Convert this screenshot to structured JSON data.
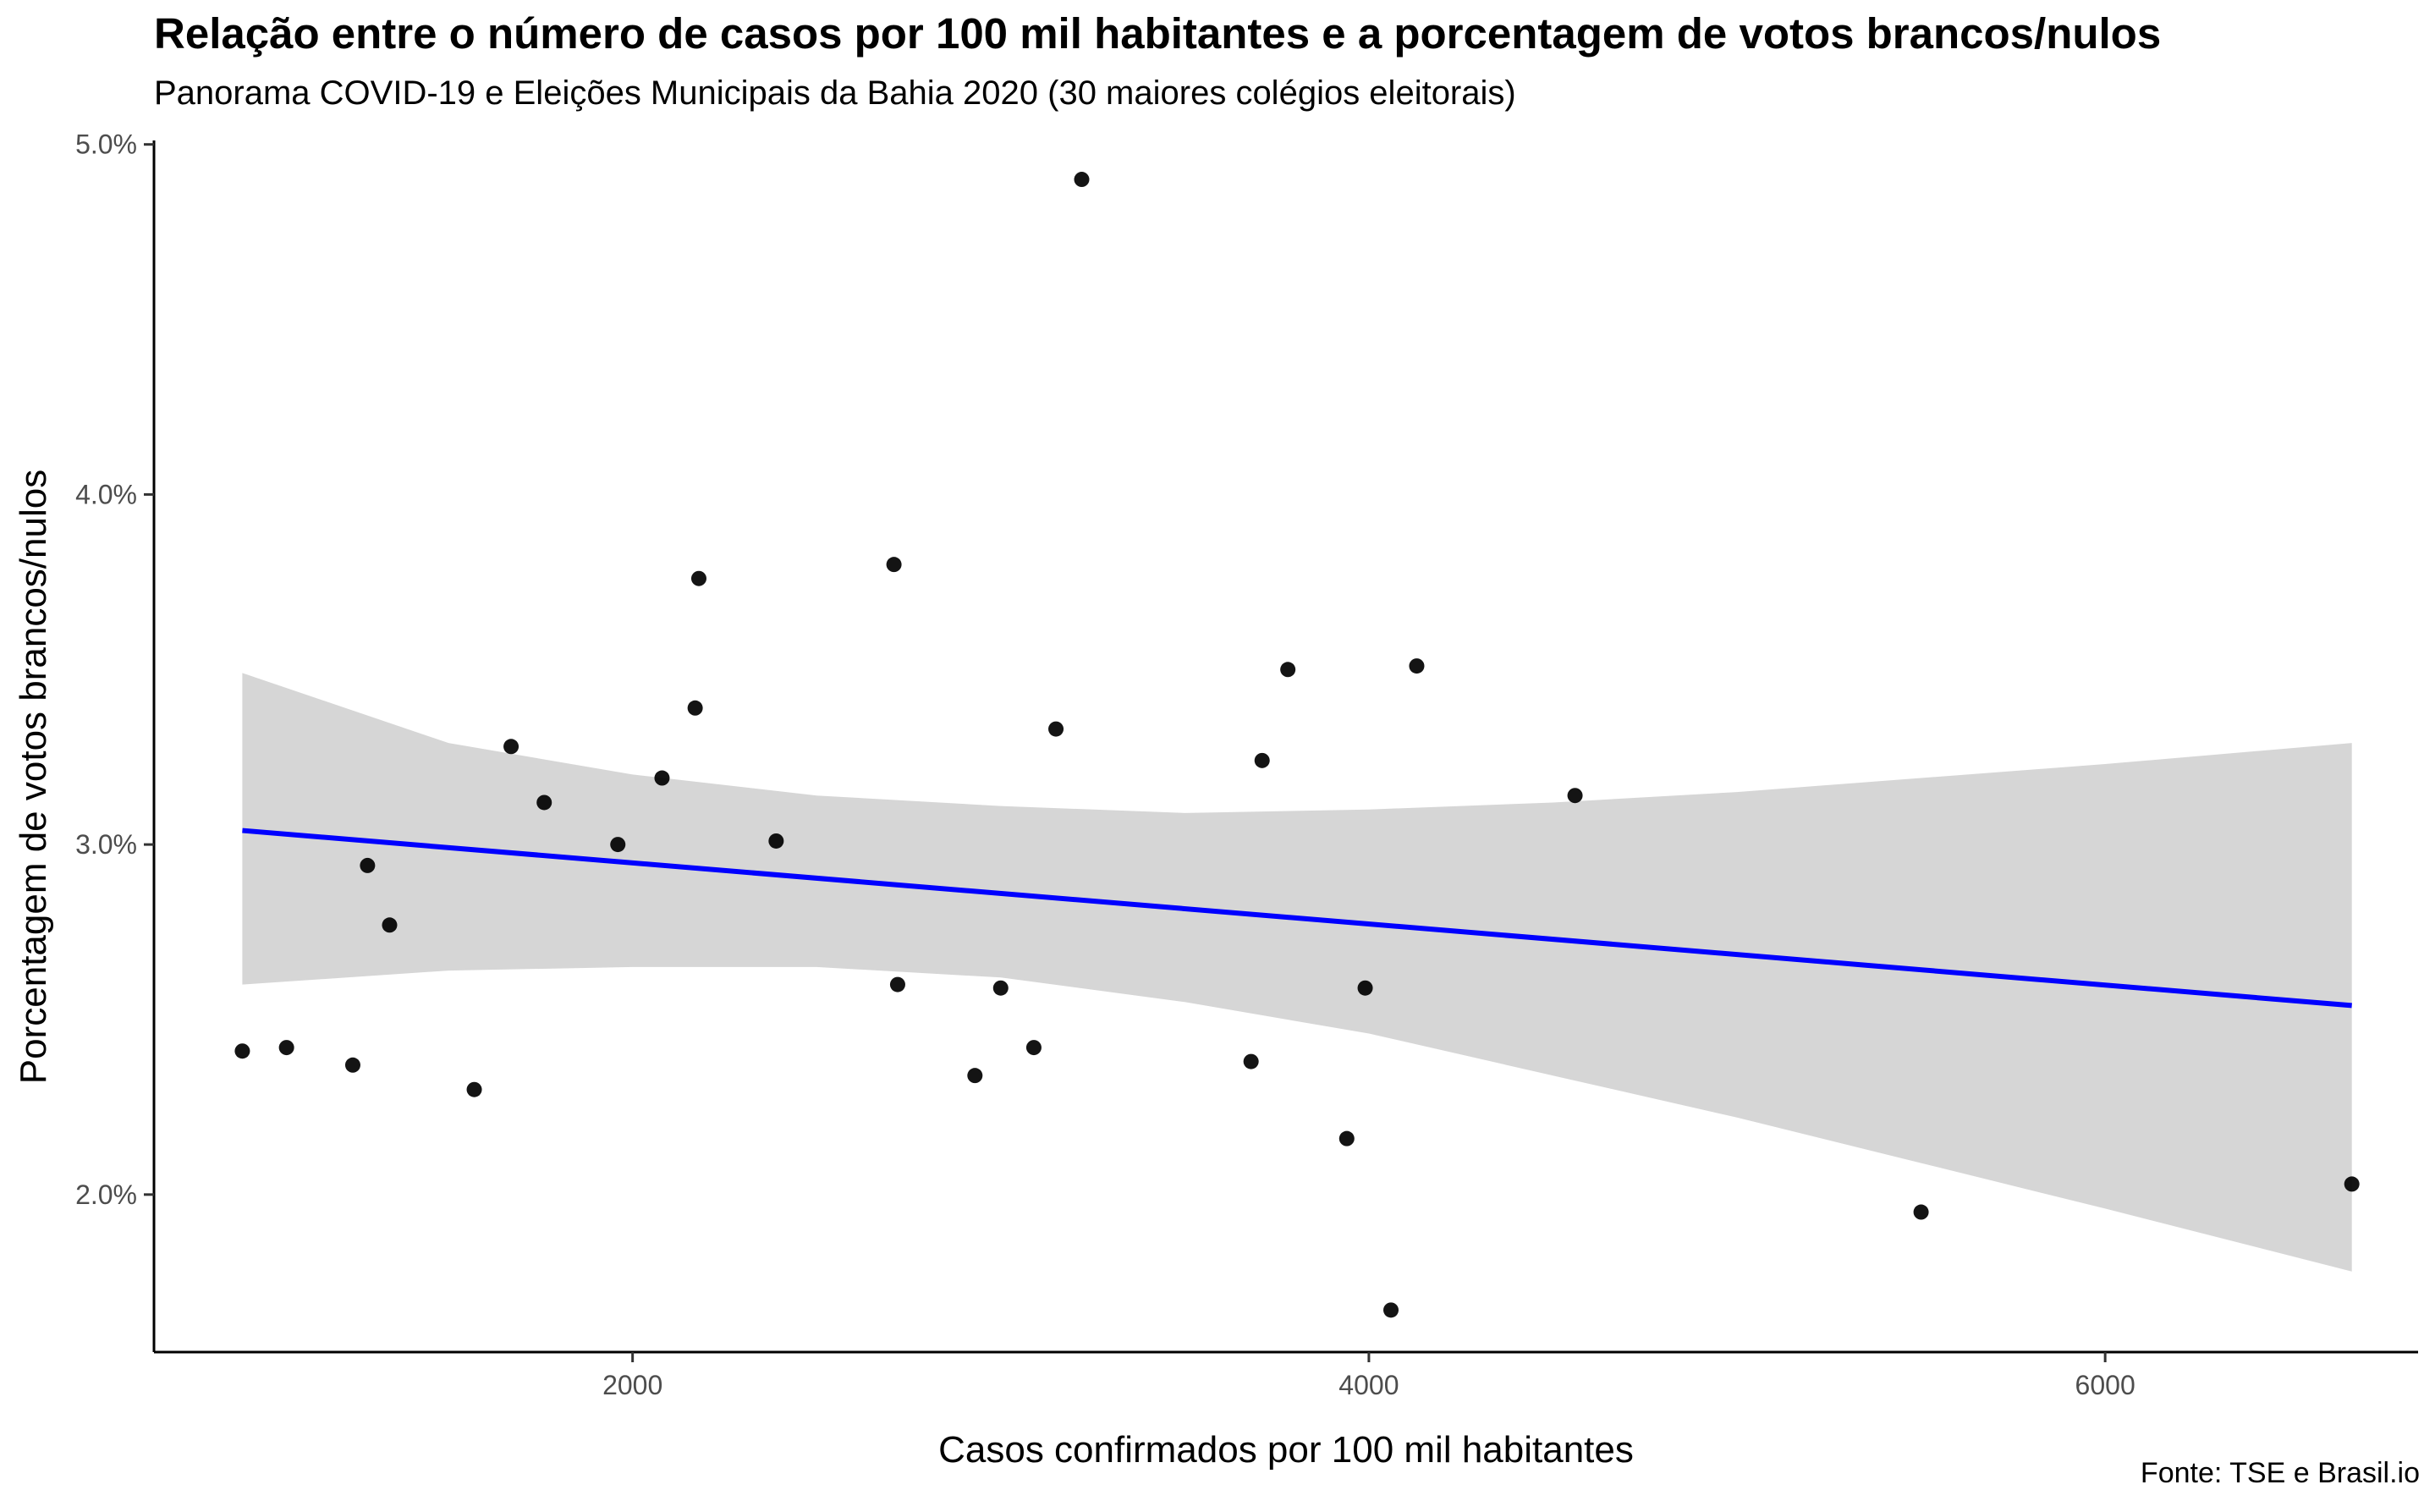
{
  "chart_data": {
    "type": "scatter",
    "title": "Relação entre o número de casos por 100 mil habitantes e a porcentagem de votos brancos/nulos",
    "subtitle": "Panorama COVID-19 e Eleições Municipais da Bahia 2020 (30 maiores colégios eleitorais)",
    "xlabel": "Casos confirmados por 100 mil habitantes",
    "ylabel": "Porcentagem de votos brancos/nulos",
    "caption": "Fonte: TSE e Brasil.io",
    "xlim": [
      700,
      6850
    ],
    "ylim": [
      1.55,
      5.05
    ],
    "x_ticks": [
      2000,
      4000,
      6000
    ],
    "x_tick_labels": [
      "2000",
      "4000",
      "6000"
    ],
    "y_ticks": [
      2.0,
      3.0,
      4.0,
      5.0
    ],
    "y_tick_labels": [
      "2.0%",
      "3.0%",
      "4.0%",
      "5.0%"
    ],
    "grid": false,
    "points_x": [
      940,
      1060,
      1240,
      1280,
      1340,
      1570,
      1670,
      1760,
      1960,
      2080,
      2170,
      2180,
      2390,
      2710,
      2720,
      2930,
      3000,
      3090,
      3150,
      3220,
      3680,
      3710,
      3780,
      3940,
      3990,
      4060,
      4130,
      4560,
      5500,
      6670
    ],
    "points_y": [
      2.41,
      2.42,
      2.37,
      2.94,
      2.77,
      2.3,
      3.28,
      3.12,
      3.0,
      3.19,
      3.39,
      3.76,
      3.01,
      3.8,
      2.6,
      2.34,
      2.59,
      2.42,
      3.33,
      4.9,
      2.38,
      3.24,
      3.5,
      2.16,
      2.59,
      1.67,
      3.51,
      3.14,
      1.95,
      2.03
    ],
    "trend": {
      "method": "lm",
      "x": [
        940,
        6670
      ],
      "y": [
        3.04,
        2.54
      ],
      "color": "#0000ff"
    },
    "band": {
      "x": [
        940,
        1500,
        2000,
        2500,
        3000,
        3500,
        4000,
        4500,
        5000,
        5500,
        6000,
        6670
      ],
      "lower": [
        2.6,
        2.64,
        2.65,
        2.65,
        2.62,
        2.55,
        2.46,
        2.34,
        2.22,
        2.09,
        1.96,
        1.78
      ],
      "upper": [
        3.49,
        3.29,
        3.2,
        3.14,
        3.11,
        3.09,
        3.1,
        3.12,
        3.15,
        3.19,
        3.23,
        3.29
      ],
      "color": "#d6d6d6"
    },
    "point_color": "#000000",
    "axis_color": "#000000"
  }
}
